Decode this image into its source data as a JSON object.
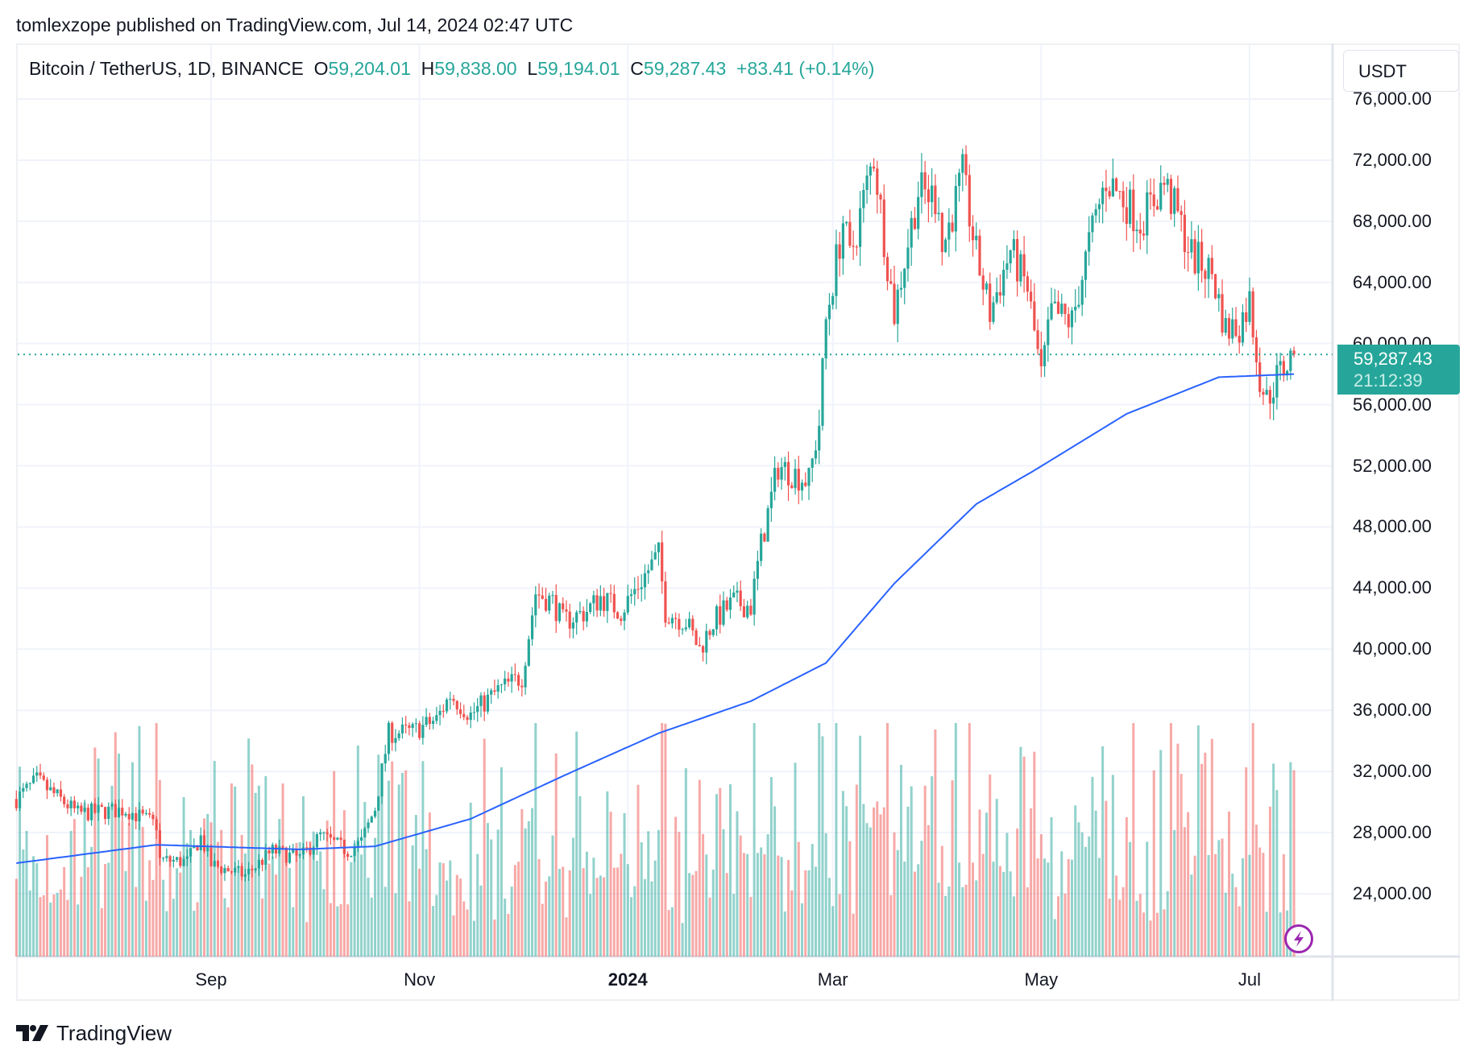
{
  "header": {
    "published": "tomlexzope published on TradingView.com, Jul 14, 2024 02:47 UTC"
  },
  "legend": {
    "symbol": "Bitcoin / TetherUS, 1D, BINANCE",
    "o_label": "O",
    "o": "59,204.01",
    "h_label": "H",
    "h": "59,838.00",
    "l_label": "L",
    "l": "59,194.01",
    "c_label": "C",
    "c": "59,287.43",
    "change": "+83.41 (+0.14%)"
  },
  "currency_button": "USDT",
  "price_tag": {
    "price": "59,287.43",
    "countdown": "21:12:39"
  },
  "footer": {
    "brand": "TradingView"
  },
  "colors": {
    "up": "#26a69a",
    "down": "#ef5350",
    "ma": "#2962ff",
    "grid": "#f0f3fa",
    "alert": "#9c27b0"
  },
  "icons": {
    "alert": "lightning-bolt-icon",
    "logo": "tradingview-logo-icon"
  },
  "chart_data": {
    "type": "candlestick",
    "title": "Bitcoin / TetherUS, 1D, BINANCE",
    "y_ticks": [
      "76,000.00",
      "72,000.00",
      "68,000.00",
      "64,000.00",
      "60,000.00",
      "56,000.00",
      "52,000.00",
      "48,000.00",
      "44,000.00",
      "40,000.00",
      "36,000.00",
      "32,000.00",
      "28,000.00",
      "24,000.00"
    ],
    "y_tick_values": [
      76000,
      72000,
      68000,
      64000,
      60000,
      56000,
      52000,
      48000,
      44000,
      40000,
      36000,
      32000,
      28000,
      24000
    ],
    "x_ticks": [
      {
        "label": "Sep",
        "date": "2023-09-01",
        "bold": false
      },
      {
        "label": "Nov",
        "date": "2023-11-01",
        "bold": false
      },
      {
        "label": "2024",
        "date": "2024-01-01",
        "bold": true
      },
      {
        "label": "Mar",
        "date": "2024-03-01",
        "bold": false
      },
      {
        "label": "May",
        "date": "2024-05-01",
        "bold": false
      },
      {
        "label": "Jul",
        "date": "2024-07-01",
        "bold": false
      }
    ],
    "x_range": [
      "2023-07-06",
      "2024-07-14"
    ],
    "last_price": 59287.43,
    "grid": true,
    "close_path": [
      [
        "2023-07-06",
        30200
      ],
      [
        "2023-07-12",
        31400
      ],
      [
        "2023-07-24",
        29250
      ],
      [
        "2023-08-07",
        29500
      ],
      [
        "2023-08-16",
        28500
      ],
      [
        "2023-08-17",
        26200
      ],
      [
        "2023-08-25",
        26100
      ],
      [
        "2023-08-29",
        27700
      ],
      [
        "2023-09-01",
        25900
      ],
      [
        "2023-09-11",
        25200
      ],
      [
        "2023-09-19",
        26800
      ],
      [
        "2023-09-27",
        26300
      ],
      [
        "2023-10-03",
        27800
      ],
      [
        "2023-10-11",
        26800
      ],
      [
        "2023-10-15",
        27400
      ],
      [
        "2023-10-19",
        29600
      ],
      [
        "2023-10-23",
        34500
      ],
      [
        "2023-10-30",
        34600
      ],
      [
        "2023-11-06",
        35400
      ],
      [
        "2023-11-10",
        37000
      ],
      [
        "2023-11-16",
        35700
      ],
      [
        "2023-11-24",
        37300
      ],
      [
        "2023-12-01",
        38200
      ],
      [
        "2023-12-05",
        43700
      ],
      [
        "2023-12-10",
        43100
      ],
      [
        "2023-12-13",
        41800
      ],
      [
        "2023-12-20",
        42500
      ],
      [
        "2023-12-24",
        43400
      ],
      [
        "2023-12-30",
        42500
      ],
      [
        "2024-01-10",
        46200
      ],
      [
        "2024-01-12",
        42500
      ],
      [
        "2024-01-18",
        41800
      ],
      [
        "2024-01-22",
        40000
      ],
      [
        "2024-01-26",
        41800
      ],
      [
        "2024-02-01",
        43100
      ],
      [
        "2024-02-06",
        42800
      ],
      [
        "2024-02-09",
        46800
      ],
      [
        "2024-02-14",
        52000
      ],
      [
        "2024-02-23",
        51000
      ],
      [
        "2024-02-26",
        54800
      ],
      [
        "2024-02-28",
        61500
      ],
      [
        "2024-03-04",
        68000
      ],
      [
        "2024-03-06",
        65500
      ],
      [
        "2024-03-13",
        72300
      ],
      [
        "2024-03-16",
        67000
      ],
      [
        "2024-03-19",
        62000
      ],
      [
        "2024-03-22",
        65500
      ],
      [
        "2024-03-26",
        70000
      ],
      [
        "2024-04-01",
        69500
      ],
      [
        "2024-04-02",
        66100
      ],
      [
        "2024-04-08",
        71000
      ],
      [
        "2024-04-12",
        65800
      ],
      [
        "2024-04-16",
        62000
      ],
      [
        "2024-04-22",
        66100
      ],
      [
        "2024-04-27",
        63600
      ],
      [
        "2024-05-01",
        57800
      ],
      [
        "2024-05-04",
        62000
      ],
      [
        "2024-05-10",
        61400
      ],
      [
        "2024-05-15",
        66500
      ],
      [
        "2024-05-20",
        70800
      ],
      [
        "2024-05-26",
        69200
      ],
      [
        "2024-05-30",
        68000
      ],
      [
        "2024-06-06",
        70500
      ],
      [
        "2024-06-10",
        68300
      ],
      [
        "2024-06-14",
        65800
      ],
      [
        "2024-06-20",
        64600
      ],
      [
        "2024-06-24",
        60900
      ],
      [
        "2024-06-28",
        61200
      ],
      [
        "2024-07-01",
        62800
      ],
      [
        "2024-07-04",
        57800
      ],
      [
        "2024-07-06",
        56300
      ],
      [
        "2024-07-09",
        57800
      ],
      [
        "2024-07-14",
        59287.43
      ]
    ],
    "moving_average": [
      [
        "2023-07-06",
        26000
      ],
      [
        "2023-08-16",
        27200
      ],
      [
        "2023-09-27",
        26900
      ],
      [
        "2023-10-19",
        27100
      ],
      [
        "2023-11-16",
        28900
      ],
      [
        "2023-12-13",
        31700
      ],
      [
        "2024-01-10",
        34500
      ],
      [
        "2024-02-06",
        36600
      ],
      [
        "2024-02-28",
        39100
      ],
      [
        "2024-03-19",
        44300
      ],
      [
        "2024-04-12",
        49500
      ],
      [
        "2024-04-29",
        51700
      ],
      [
        "2024-05-26",
        55400
      ],
      [
        "2024-06-22",
        57800
      ],
      [
        "2024-07-14",
        58000
      ]
    ],
    "volume_shown": true
  }
}
